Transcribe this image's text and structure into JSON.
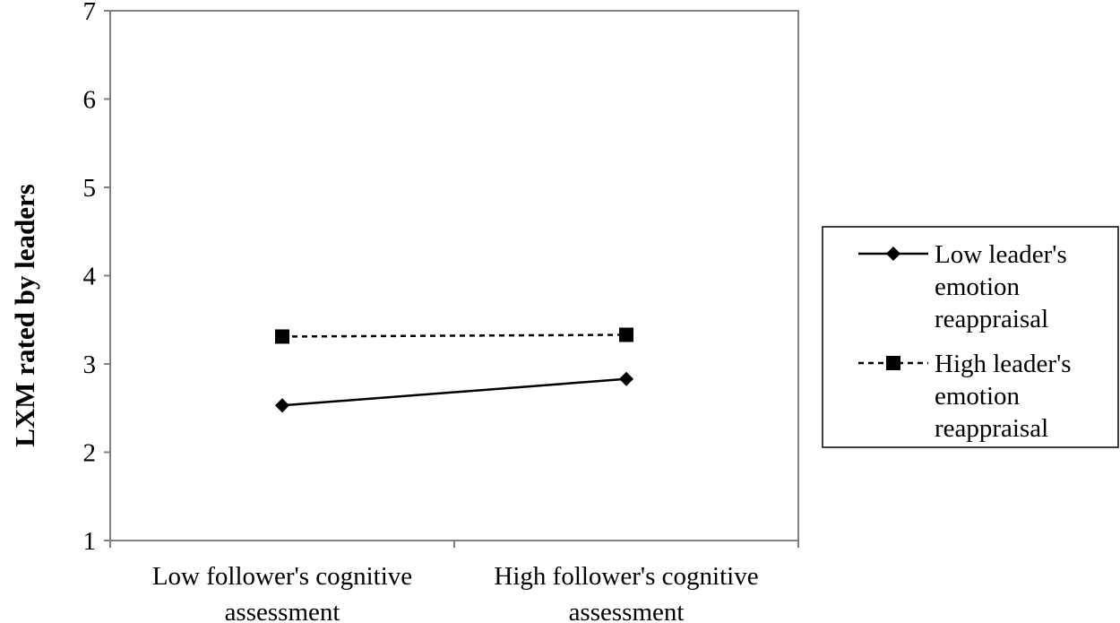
{
  "chart_data": {
    "type": "line",
    "categories": [
      [
        "Low follower's cognitive",
        "assessment"
      ],
      [
        "High follower's cognitive",
        "assessment"
      ]
    ],
    "series": [
      {
        "name": [
          "Low leader's",
          "emotion",
          "reappraisal"
        ],
        "values": [
          2.53,
          2.83
        ],
        "line_style": "solid",
        "marker": "diamond",
        "color": "#000000"
      },
      {
        "name": [
          "High leader's",
          "emotion",
          "reappraisal"
        ],
        "values": [
          3.31,
          3.33
        ],
        "line_style": "dashed",
        "marker": "square",
        "color": "#000000"
      }
    ],
    "ylabel": "LXM rated by leaders",
    "xlabel": "",
    "ylim": [
      1,
      7
    ],
    "yticks": [
      1,
      2,
      3,
      4,
      5,
      6,
      7
    ],
    "grid": false,
    "legend_position": "right",
    "plot_border_color": "#808080"
  }
}
